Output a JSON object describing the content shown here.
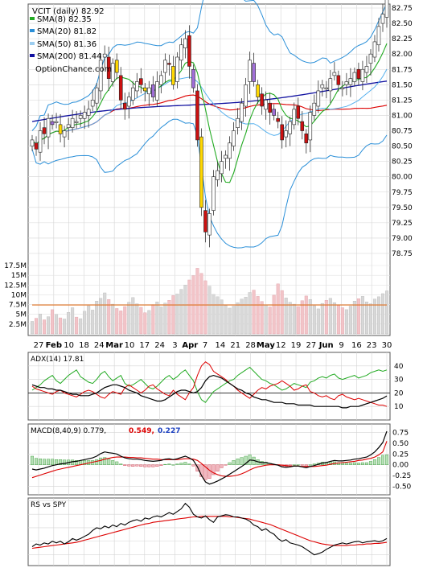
{
  "price_panel": {
    "title": "VCIT (daily) 82.92",
    "watermark": "OptionChance.com",
    "legend": [
      {
        "label": "SMA(8) 82.35",
        "color": "#22aa22"
      },
      {
        "label": "SMA(20) 81.82",
        "color": "#2a8fd8"
      },
      {
        "label": "SMA(50) 81.36",
        "color": "#9bcdf0"
      },
      {
        "label": "SMA(200) 81.44",
        "color": "#1010a0"
      }
    ],
    "y_ticks": [
      "82.75",
      "82.50",
      "82.25",
      "82.00",
      "81.75",
      "81.50",
      "81.25",
      "81.00",
      "80.75",
      "80.50",
      "80.25",
      "80.00",
      "79.75",
      "79.50",
      "79.25",
      "79.00",
      "78.75"
    ]
  },
  "volume_panel": {
    "y_ticks": [
      "17.5M",
      "15M",
      "12.5M",
      "10M",
      "7.5M",
      "5M",
      "2.5M"
    ]
  },
  "x_axis": {
    "labels": [
      "27",
      "Feb",
      "10",
      "18",
      "24",
      "Mar",
      "10",
      "17",
      "24",
      "3",
      "Apr",
      "7",
      "14",
      "21",
      "28",
      "May",
      "12",
      "19",
      "27",
      "Jun",
      "9",
      "16",
      "23",
      "30"
    ]
  },
  "adx_panel": {
    "label": "ADX(14) 17.81",
    "y_ticks": [
      "40",
      "30",
      "20",
      "10"
    ]
  },
  "macd_panel": {
    "label": "MACD(8,40,9) 0.779,",
    "signal_value": "0.549,",
    "hist_value": "0.227",
    "signal_color": "#dd0000",
    "hist_color": "#1a3fc0",
    "y_ticks": [
      "0.75",
      "0.50",
      "0.25",
      "0.00",
      "-0.25",
      "-0.50"
    ]
  },
  "rs_panel": {
    "label": "RS vs SPY"
  },
  "chart_data": {
    "type": "candlestick",
    "symbol": "VCIT",
    "ylim": [
      78.75,
      82.75
    ],
    "closes": [
      80.6,
      80.45,
      80.75,
      80.7,
      80.95,
      80.85,
      80.9,
      80.7,
      80.75,
      80.85,
      80.95,
      80.9,
      81.0,
      81.05,
      81.1,
      81.25,
      81.45,
      81.9,
      82.0,
      81.6,
      81.85,
      81.7,
      81.25,
      81.1,
      81.3,
      81.45,
      81.55,
      81.5,
      81.4,
      81.45,
      81.3,
      81.55,
      81.65,
      81.9,
      81.85,
      81.5,
      81.95,
      82.15,
      82.25,
      81.8,
      81.45,
      80.6,
      79.5,
      79.1,
      79.4,
      80.0,
      80.1,
      80.25,
      80.35,
      80.55,
      80.75,
      80.95,
      81.2,
      81.5,
      81.9,
      81.55,
      81.3,
      81.15,
      81.25,
      81.05,
      81.0,
      80.9,
      80.6,
      80.75,
      80.9,
      81.1,
      80.95,
      80.75,
      80.55,
      81.05,
      81.2,
      81.4,
      81.5,
      81.45,
      81.6,
      81.7,
      81.5,
      81.45,
      81.55,
      81.6,
      81.7,
      81.6,
      81.75,
      81.8,
      82.0,
      82.2,
      82.45,
      82.65,
      82.92
    ],
    "volume_scale_max": 17.5,
    "volumes": [
      3.2,
      4.0,
      5.1,
      3.6,
      4.4,
      6.2,
      5.0,
      4.1,
      3.8,
      5.5,
      6.7,
      4.3,
      3.9,
      5.8,
      7.2,
      6.1,
      8.4,
      9.1,
      10.5,
      8.8,
      7.6,
      6.5,
      5.9,
      7.0,
      8.1,
      9.3,
      7.7,
      6.8,
      5.4,
      6.0,
      7.5,
      8.2,
      6.9,
      7.9,
      8.6,
      9.8,
      10.2,
      11.4,
      12.5,
      13.8,
      14.9,
      16.8,
      15.5,
      13.6,
      12.2,
      10.1,
      9.5,
      8.7,
      7.3,
      6.6,
      7.1,
      8.0,
      8.9,
      9.4,
      10.6,
      11.2,
      9.6,
      8.3,
      7.4,
      6.9,
      9.9,
      12.8,
      11.1,
      9.2,
      8.1,
      7.6,
      7.0,
      8.5,
      9.7,
      8.8,
      7.2,
      6.4,
      7.8,
      8.6,
      9.1,
      8.0,
      7.3,
      6.7,
      6.2,
      7.1,
      8.4,
      9.0,
      9.6,
      8.2,
      7.7,
      8.9,
      9.5,
      10.3,
      11.0
    ],
    "volume_avg": 7.4,
    "adx": [
      26,
      25,
      24,
      24,
      23,
      23,
      22,
      22,
      21,
      20,
      19,
      19,
      18,
      18,
      18,
      19,
      20,
      22,
      24,
      25,
      26,
      26,
      25,
      24,
      22,
      21,
      20,
      18,
      17,
      16,
      15,
      14,
      14,
      15,
      17,
      19,
      21,
      22,
      22,
      21,
      20,
      21,
      24,
      29,
      32,
      33,
      32,
      31,
      29,
      27,
      25,
      23,
      22,
      20,
      19,
      17,
      16,
      15,
      15,
      14,
      13,
      13,
      13,
      12,
      12,
      12,
      11,
      11,
      11,
      11,
      10,
      10,
      10,
      10,
      10,
      10,
      10,
      9,
      9,
      10,
      10,
      10,
      11,
      12,
      13,
      14,
      15,
      16,
      17.81
    ],
    "plus_di": [
      22,
      24,
      26,
      29,
      31,
      33,
      29,
      27,
      30,
      33,
      35,
      37,
      32,
      30,
      28,
      27,
      30,
      34,
      36,
      32,
      29,
      31,
      33,
      27,
      25,
      26,
      28,
      30,
      27,
      24,
      23,
      25,
      28,
      31,
      33,
      30,
      32,
      35,
      37,
      33,
      29,
      21,
      15,
      13,
      17,
      21,
      23,
      25,
      27,
      29,
      30,
      33,
      35,
      37,
      39,
      36,
      33,
      30,
      29,
      27,
      26,
      24,
      22,
      23,
      25,
      27,
      26,
      25,
      24,
      28,
      29,
      31,
      32,
      31,
      33,
      34,
      31,
      30,
      31,
      32,
      33,
      31,
      32,
      33,
      35,
      36,
      37,
      36,
      37
    ],
    "minus_di": [
      25,
      23,
      22,
      21,
      20,
      19,
      21,
      22,
      20,
      19,
      18,
      17,
      19,
      21,
      22,
      21,
      19,
      17,
      16,
      19,
      21,
      20,
      19,
      24,
      26,
      24,
      22,
      20,
      22,
      25,
      26,
      23,
      21,
      19,
      18,
      22,
      19,
      17,
      15,
      20,
      24,
      33,
      40,
      43,
      41,
      36,
      34,
      32,
      30,
      27,
      25,
      22,
      20,
      18,
      16,
      19,
      22,
      24,
      23,
      25,
      26,
      27,
      29,
      27,
      25,
      22,
      23,
      25,
      26,
      21,
      20,
      18,
      17,
      18,
      16,
      15,
      18,
      19,
      17,
      16,
      15,
      16,
      15,
      14,
      13,
      12,
      11,
      11,
      10
    ],
    "macd": [
      -0.1,
      -0.12,
      -0.1,
      -0.08,
      -0.05,
      -0.02,
      0.0,
      0.02,
      0.03,
      0.05,
      0.07,
      0.08,
      0.1,
      0.12,
      0.14,
      0.16,
      0.2,
      0.26,
      0.3,
      0.28,
      0.27,
      0.25,
      0.2,
      0.16,
      0.14,
      0.13,
      0.13,
      0.12,
      0.1,
      0.09,
      0.08,
      0.09,
      0.1,
      0.13,
      0.14,
      0.12,
      0.14,
      0.17,
      0.2,
      0.16,
      0.1,
      -0.05,
      -0.25,
      -0.4,
      -0.45,
      -0.42,
      -0.38,
      -0.33,
      -0.28,
      -0.22,
      -0.16,
      -0.1,
      -0.04,
      0.03,
      0.11,
      0.1,
      0.07,
      0.05,
      0.05,
      0.03,
      0.01,
      -0.01,
      -0.05,
      -0.06,
      -0.05,
      -0.03,
      -0.03,
      -0.05,
      -0.07,
      -0.04,
      -0.02,
      0.01,
      0.04,
      0.05,
      0.08,
      0.1,
      0.09,
      0.09,
      0.1,
      0.11,
      0.13,
      0.14,
      0.16,
      0.18,
      0.23,
      0.3,
      0.4,
      0.52,
      0.78
    ],
    "macd_signal": [
      -0.3,
      -0.27,
      -0.24,
      -0.21,
      -0.18,
      -0.15,
      -0.12,
      -0.1,
      -0.08,
      -0.06,
      -0.04,
      -0.02,
      0.0,
      0.02,
      0.04,
      0.06,
      0.08,
      0.1,
      0.13,
      0.15,
      0.17,
      0.18,
      0.18,
      0.18,
      0.17,
      0.17,
      0.16,
      0.16,
      0.15,
      0.14,
      0.13,
      0.13,
      0.12,
      0.12,
      0.12,
      0.12,
      0.12,
      0.13,
      0.14,
      0.14,
      0.13,
      0.1,
      0.03,
      -0.05,
      -0.13,
      -0.19,
      -0.23,
      -0.26,
      -0.27,
      -0.27,
      -0.26,
      -0.24,
      -0.21,
      -0.17,
      -0.12,
      -0.08,
      -0.05,
      -0.03,
      -0.01,
      0.0,
      0.0,
      0.0,
      -0.01,
      -0.02,
      -0.03,
      -0.03,
      -0.03,
      -0.04,
      -0.04,
      -0.04,
      -0.04,
      -0.03,
      -0.02,
      -0.01,
      0.01,
      0.03,
      0.04,
      0.05,
      0.06,
      0.07,
      0.08,
      0.1,
      0.11,
      0.13,
      0.15,
      0.18,
      0.23,
      0.3,
      0.55
    ],
    "rs_vs_spy": [
      0.15,
      0.2,
      0.18,
      0.22,
      0.2,
      0.25,
      0.22,
      0.25,
      0.2,
      0.24,
      0.3,
      0.27,
      0.3,
      0.34,
      0.38,
      0.45,
      0.5,
      0.48,
      0.53,
      0.5,
      0.55,
      0.52,
      0.58,
      0.55,
      0.6,
      0.63,
      0.65,
      0.62,
      0.68,
      0.66,
      0.7,
      0.72,
      0.7,
      0.74,
      0.78,
      0.75,
      0.8,
      0.85,
      0.95,
      0.88,
      0.75,
      0.7,
      0.68,
      0.72,
      0.65,
      0.6,
      0.7,
      0.72,
      0.74,
      0.73,
      0.7,
      0.7,
      0.68,
      0.66,
      0.62,
      0.55,
      0.52,
      0.45,
      0.48,
      0.42,
      0.38,
      0.3,
      0.25,
      0.28,
      0.22,
      0.2,
      0.18,
      0.15,
      0.1,
      0.05,
      0.0,
      0.02,
      0.05,
      0.1,
      0.14,
      0.18,
      0.2,
      0.22,
      0.2,
      0.22,
      0.24,
      0.25,
      0.22,
      0.24,
      0.25,
      0.26,
      0.24,
      0.26,
      0.3
    ],
    "rs_avg": [
      0.12,
      0.13,
      0.14,
      0.15,
      0.16,
      0.17,
      0.18,
      0.19,
      0.2,
      0.21,
      0.22,
      0.23,
      0.25,
      0.27,
      0.29,
      0.31,
      0.33,
      0.35,
      0.37,
      0.39,
      0.41,
      0.43,
      0.45,
      0.47,
      0.49,
      0.51,
      0.53,
      0.55,
      0.57,
      0.58,
      0.6,
      0.61,
      0.62,
      0.63,
      0.64,
      0.65,
      0.66,
      0.67,
      0.68,
      0.69,
      0.7,
      0.7,
      0.71,
      0.71,
      0.71,
      0.71,
      0.71,
      0.71,
      0.71,
      0.7,
      0.7,
      0.69,
      0.68,
      0.67,
      0.66,
      0.64,
      0.62,
      0.6,
      0.58,
      0.56,
      0.53,
      0.5,
      0.47,
      0.44,
      0.41,
      0.38,
      0.35,
      0.32,
      0.29,
      0.26,
      0.24,
      0.22,
      0.2,
      0.19,
      0.18,
      0.17,
      0.17,
      0.17,
      0.17,
      0.18,
      0.18,
      0.19,
      0.19,
      0.2,
      0.2,
      0.21,
      0.21,
      0.22,
      0.23
    ]
  }
}
